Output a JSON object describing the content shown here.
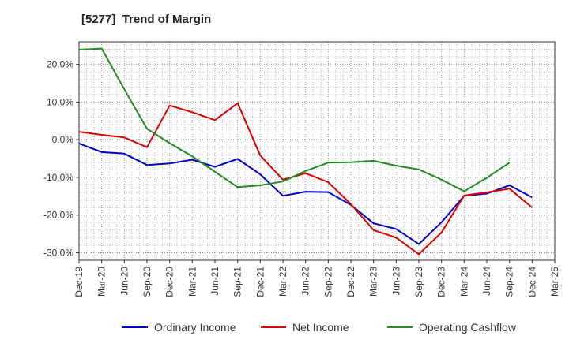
{
  "chart_data": {
    "type": "line",
    "title": "[5277]  Trend of Margin",
    "xlabel": "",
    "ylabel": "",
    "ylim": [
      -32,
      26
    ],
    "yticks": [
      20,
      10,
      0,
      -10,
      -20,
      -30
    ],
    "ytick_labels": [
      "20.0%",
      "10.0%",
      "0.0%",
      "-10.0%",
      "-20.0%",
      "-30.0%"
    ],
    "categories": [
      "Dec-19",
      "Mar-20",
      "Jun-20",
      "Sep-20",
      "Dec-20",
      "Mar-21",
      "Jun-21",
      "Sep-21",
      "Dec-21",
      "Mar-22",
      "Jun-22",
      "Sep-22",
      "Dec-22",
      "Mar-23",
      "Jun-23",
      "Sep-23",
      "Dec-23",
      "Mar-24",
      "Jun-24",
      "Sep-24",
      "Dec-24",
      "Mar-25"
    ],
    "grid": true,
    "legend_position": "bottom",
    "series": [
      {
        "name": "Ordinary Income",
        "color": "#0000cc",
        "values": [
          -1.0,
          -3.3,
          -3.7,
          -6.7,
          -6.3,
          -5.3,
          -7.2,
          -5.1,
          -9.2,
          -14.9,
          -13.8,
          -13.9,
          -17.3,
          -22.2,
          -23.7,
          -27.7,
          -21.9,
          -14.9,
          -14.3,
          -12.1,
          -15.3,
          null
        ]
      },
      {
        "name": "Net Income",
        "color": "#dd0000",
        "values": [
          2.1,
          1.3,
          0.6,
          -2.0,
          9.1,
          7.3,
          5.2,
          9.7,
          -4.2,
          -10.6,
          -8.9,
          -11.3,
          -17.1,
          -24.0,
          -26.0,
          -30.4,
          -24.6,
          -14.8,
          -14.0,
          -13.0,
          -18.0,
          null
        ]
      },
      {
        "name": "Operating Cashflow",
        "color": "#228b22",
        "values": [
          23.9,
          24.2,
          13.4,
          2.9,
          -0.9,
          -4.4,
          -8.5,
          -12.6,
          -12.1,
          -11.1,
          -8.3,
          -6.1,
          -6.0,
          -5.6,
          -6.9,
          -7.9,
          -10.6,
          -13.7,
          -10.1,
          -6.1,
          null,
          null
        ]
      }
    ]
  }
}
